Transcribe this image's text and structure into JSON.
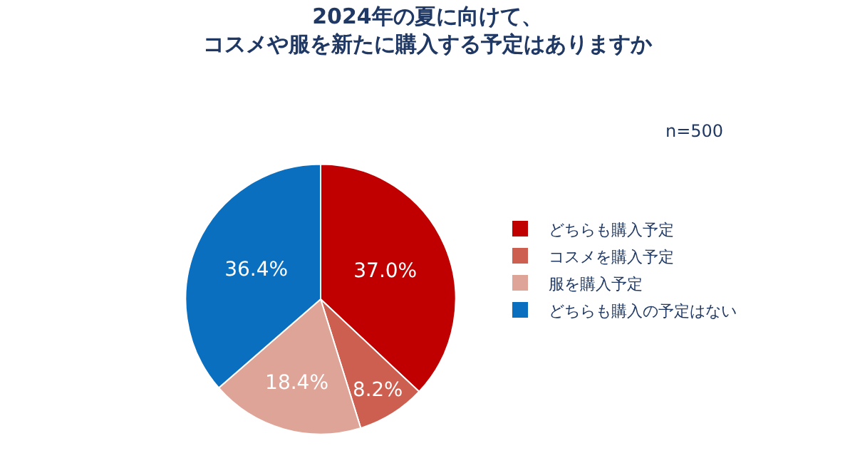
{
  "chart_data": {
    "type": "pie",
    "title": "2024年の夏に向けて、",
    "subtitle": "コスメや服を新たに購入する予定はありますか",
    "categories": [
      "どちらも購入予定",
      "コスメを購入予定",
      "服を購入予定",
      "どちらも購入の予定はない"
    ],
    "values": [
      37.0,
      8.2,
      18.4,
      36.4
    ],
    "value_labels": [
      "37.0%",
      "8.2%",
      "18.4%",
      "36.4%"
    ],
    "colors": [
      "#c00000",
      "#cc5f4f",
      "#dea497",
      "#0b6fc0"
    ],
    "annotations": [
      "n=500"
    ],
    "legend": "right"
  }
}
